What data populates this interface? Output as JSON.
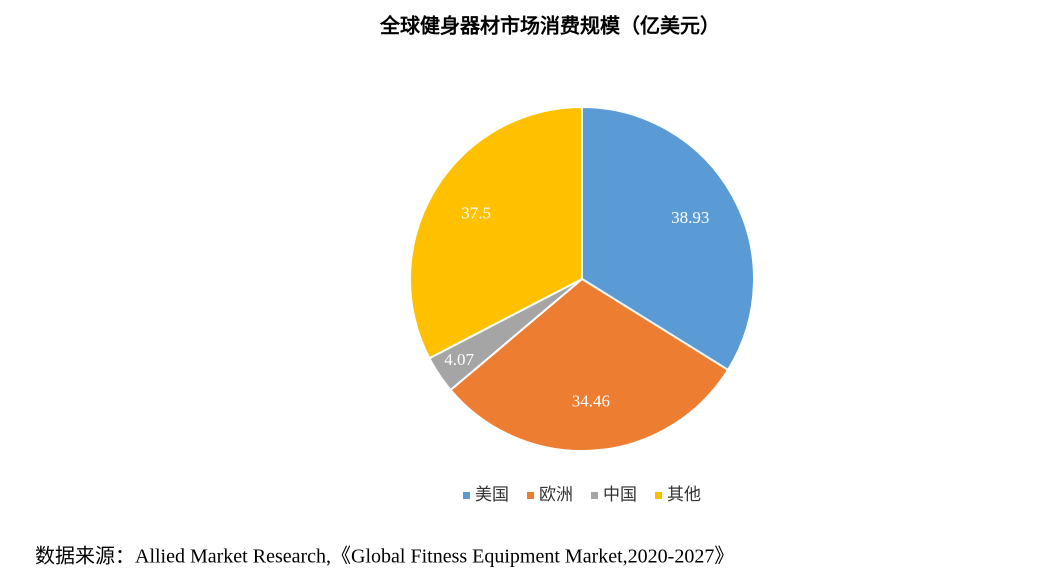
{
  "chart_data": {
    "type": "pie",
    "title": "全球健身器材市场消费规模（亿美元）",
    "categories": [
      "美国",
      "欧洲",
      "中国",
      "其他"
    ],
    "values": [
      38.93,
      34.46,
      4.07,
      37.5
    ],
    "colors": [
      "#5b9bd5",
      "#ed7d31",
      "#a5a5a5",
      "#ffc000"
    ],
    "legend": "bottom",
    "source": "数据来源：Allied Market Research,《Global Fitness Equipment Market,2020-2027》"
  }
}
